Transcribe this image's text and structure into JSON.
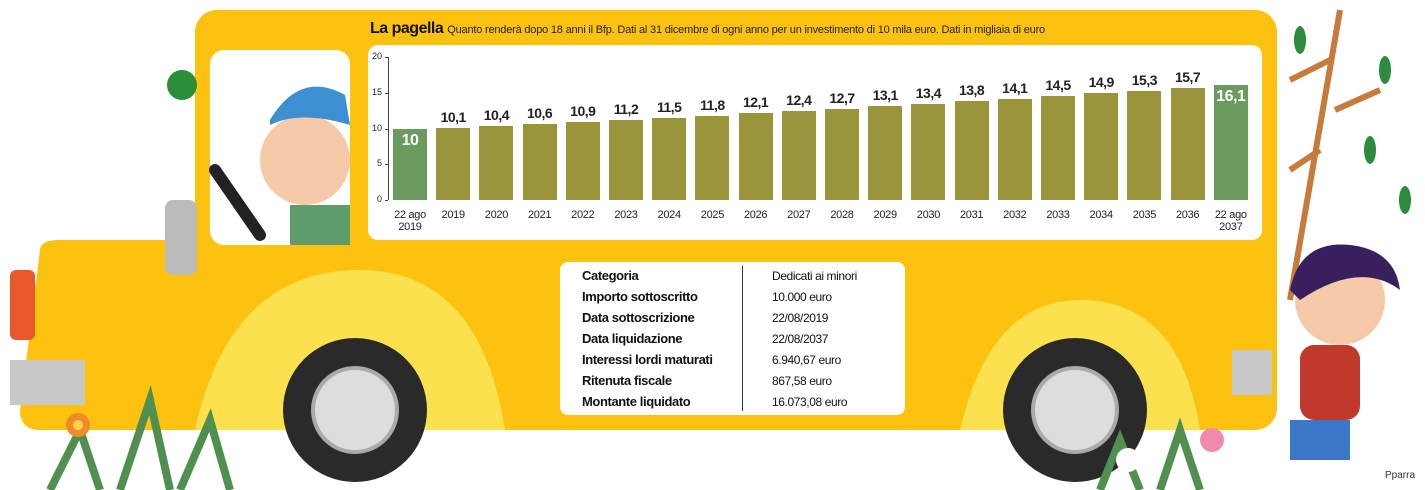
{
  "chart_data": {
    "type": "bar",
    "title": "La pagella",
    "subtitle": "Quanto renderà dopo 18 anni il Bfp.  Dati al 31 dicembre di ogni anno per un investimento di 10 mila euro. Dati in migliaia di euro",
    "categories": [
      "22 ago 2019",
      "2019",
      "2020",
      "2021",
      "2022",
      "2023",
      "2024",
      "2025",
      "2026",
      "2027",
      "2028",
      "2029",
      "2030",
      "2031",
      "2032",
      "2033",
      "2034",
      "2035",
      "2036",
      "22 ago 2037"
    ],
    "values": [
      10,
      10.1,
      10.4,
      10.6,
      10.9,
      11.2,
      11.5,
      11.8,
      12.1,
      12.4,
      12.7,
      13.1,
      13.4,
      13.8,
      14.1,
      14.5,
      14.9,
      15.3,
      15.7,
      16.1
    ],
    "value_labels": [
      "10",
      "10,1",
      "10,4",
      "10,6",
      "10,9",
      "11,2",
      "11,5",
      "11,8",
      "12,1",
      "12,4",
      "12,7",
      "13,1",
      "13,4",
      "13,8",
      "14,1",
      "14,5",
      "14,9",
      "15,3",
      "15,7",
      "16,1"
    ],
    "colors": [
      "#6b9a5f",
      "#9a943b",
      "#9a943b",
      "#9a943b",
      "#9a943b",
      "#9a943b",
      "#9a943b",
      "#9a943b",
      "#9a943b",
      "#9a943b",
      "#9a943b",
      "#9a943b",
      "#9a943b",
      "#9a943b",
      "#9a943b",
      "#9a943b",
      "#9a943b",
      "#9a943b",
      "#9a943b",
      "#6b9a5f"
    ],
    "ylim": [
      0,
      20
    ],
    "yticks": [
      0,
      5,
      10,
      15,
      20
    ]
  },
  "table": {
    "rows": [
      [
        "Categoria",
        "Dedicati ai minori"
      ],
      [
        "Importo sottoscritto",
        "10.000 euro"
      ],
      [
        "Data sottoscrizione",
        "22/08/2019"
      ],
      [
        "Data liquidazione",
        "22/08/2037"
      ],
      [
        "Interessi lordi maturati",
        "6.940,67 euro"
      ],
      [
        "Ritenuta fiscale",
        "867,58 euro"
      ],
      [
        "Montante liquidato",
        "16.073,08 euro"
      ]
    ]
  },
  "credit": "Pparra"
}
